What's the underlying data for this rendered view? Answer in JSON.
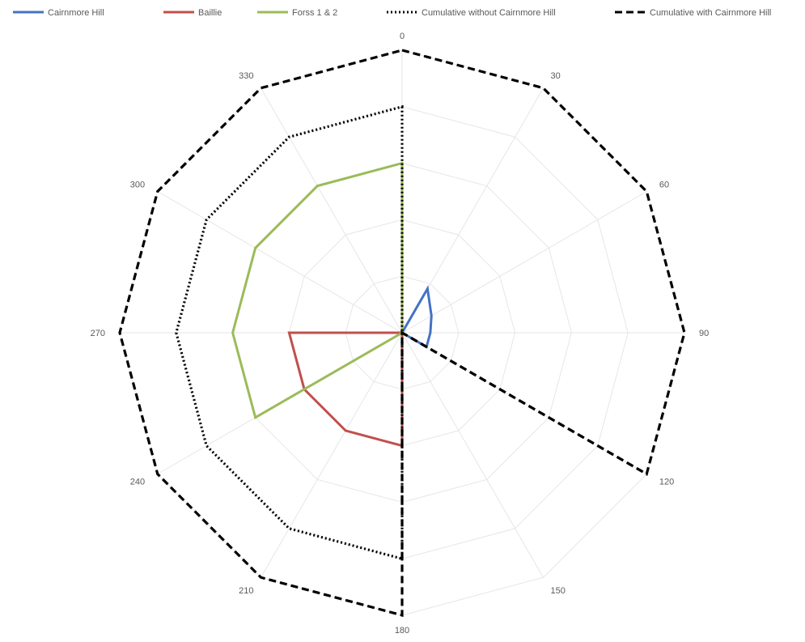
{
  "chart_data": {
    "type": "radar",
    "title": "",
    "categories": [
      "0",
      "30",
      "60",
      "90",
      "120",
      "150",
      "180",
      "210",
      "240",
      "270",
      "300",
      "330"
    ],
    "rmax": 100,
    "rings": 5,
    "grid": true,
    "legend_position": "top",
    "series": [
      {
        "name": "Cairnmore Hill",
        "color": "#4472c4",
        "dash": "solid",
        "values": [
          0,
          18,
          12,
          10,
          10,
          0,
          0,
          0,
          0,
          0,
          0,
          0
        ]
      },
      {
        "name": "Baillie",
        "color": "#c0504d",
        "dash": "solid",
        "values": [
          0,
          0,
          0,
          0,
          0,
          0,
          40,
          40,
          40,
          40,
          0,
          0
        ]
      },
      {
        "name": "Forss 1 & 2",
        "color": "#9bbb59",
        "dash": "solid",
        "values": [
          60,
          0,
          0,
          0,
          0,
          0,
          0,
          0,
          60,
          60,
          60,
          60
        ]
      },
      {
        "name": "Cumulative without Cairnmore Hill",
        "color": "#000000",
        "dash": "dotted",
        "values": [
          80,
          0,
          0,
          0,
          0,
          0,
          80,
          80,
          80,
          80,
          80,
          80
        ]
      },
      {
        "name": "Cumulative with Cairnmore Hill",
        "color": "#000000",
        "dash": "dashed",
        "values": [
          100,
          100,
          100,
          100,
          100,
          0,
          100,
          100,
          100,
          100,
          100,
          100
        ]
      }
    ]
  }
}
